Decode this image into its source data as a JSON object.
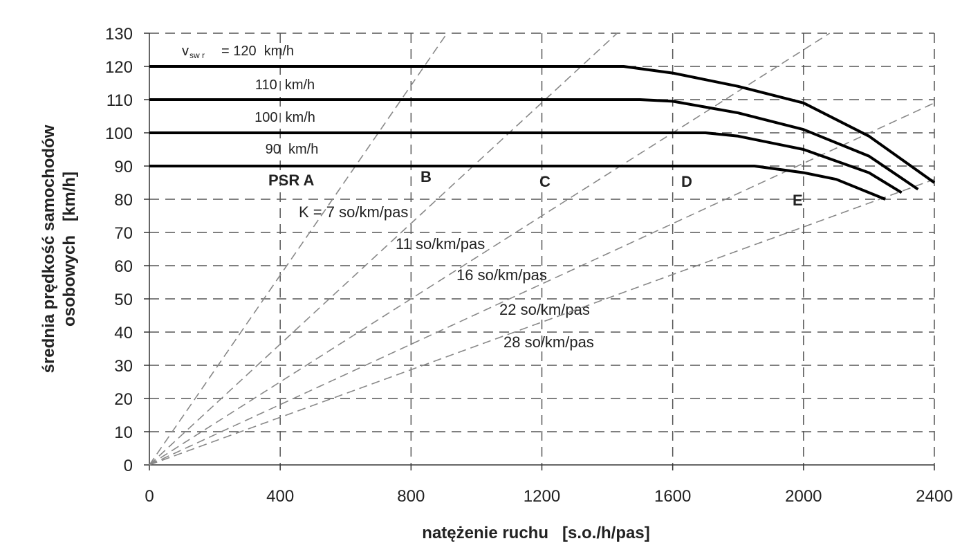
{
  "chart_data": {
    "type": "line",
    "x_label": "natężenie ruchu   [s.o./h/pas]",
    "y_label": [
      "średnia prędkość samochodów",
      "osobowych   [km/h]"
    ],
    "xlim": [
      0,
      2400
    ],
    "xticks": [
      0,
      400,
      800,
      1200,
      1600,
      2000,
      2400
    ],
    "ylim": [
      0,
      130
    ],
    "yticks": [
      0,
      10,
      20,
      30,
      40,
      50,
      60,
      70,
      80,
      90,
      100,
      110,
      120,
      130
    ],
    "grid": true,
    "speed_symbol": "v",
    "speed_subscript": "sw r",
    "series": [
      {
        "name": "= 120  km/h",
        "color": "#000000",
        "x": [
          0,
          1450,
          1600,
          1800,
          2000,
          2200,
          2400
        ],
        "values": [
          120,
          120,
          118,
          114,
          109,
          99,
          85
        ]
      },
      {
        "name": "110  km/h",
        "color": "#000000",
        "x": [
          0,
          1500,
          1600,
          1800,
          2000,
          2200,
          2350
        ],
        "values": [
          110,
          110,
          109.5,
          106,
          101,
          93,
          83
        ]
      },
      {
        "name": "100  km/h",
        "color": "#000000",
        "x": [
          0,
          1700,
          1800,
          2000,
          2200,
          2300
        ],
        "values": [
          100,
          100,
          99,
          95,
          88,
          82
        ]
      },
      {
        "name": "90  km/h",
        "color": "#000000",
        "x": [
          0,
          1850,
          2000,
          2100,
          2250
        ],
        "values": [
          90,
          90,
          88,
          86,
          80
        ]
      }
    ],
    "density_lines": [
      {
        "name": "K = 7 so/km/pas",
        "color": "#888888",
        "x": [
          0,
          910
        ],
        "values": [
          0,
          130
        ]
      },
      {
        "name": "11 so/km/pas",
        "color": "#888888",
        "x": [
          0,
          1430
        ],
        "values": [
          0,
          130
        ]
      },
      {
        "name": "16 so/km/pas",
        "color": "#888888",
        "x": [
          0,
          2080
        ],
        "values": [
          0,
          130
        ]
      },
      {
        "name": "22 so/km/pas",
        "color": "#888888",
        "x": [
          0,
          2400
        ],
        "values": [
          0,
          109
        ]
      },
      {
        "name": "28 so/km/pas",
        "color": "#888888",
        "x": [
          0,
          2400
        ],
        "values": [
          0,
          86
        ]
      }
    ],
    "los_labels": [
      "PSR A",
      "B",
      "C",
      "D",
      "E"
    ]
  }
}
